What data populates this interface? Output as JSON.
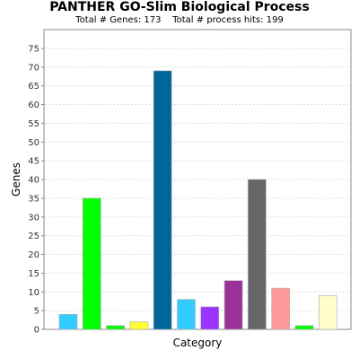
{
  "chart_data": {
    "type": "bar",
    "title": "PANTHER GO-Slim Biological Process",
    "subtitle": "Total # Genes: 173    Total # process hits: 199",
    "xlabel": "Category",
    "ylabel": "Genes",
    "ylim": [
      0,
      80
    ],
    "yticks": [
      0,
      5,
      10,
      15,
      20,
      25,
      30,
      35,
      40,
      45,
      50,
      55,
      60,
      65,
      70,
      75
    ],
    "grid": true,
    "values": [
      4,
      35,
      1,
      2,
      69,
      8,
      6,
      13,
      40,
      11,
      1,
      9
    ],
    "colors": [
      "#33ccff",
      "#00ff00",
      "#00ff00",
      "#ffff33",
      "#006699",
      "#33ccff",
      "#9933ff",
      "#993399",
      "#666666",
      "#ff9999",
      "#00ff00",
      "#ffffcc"
    ]
  }
}
